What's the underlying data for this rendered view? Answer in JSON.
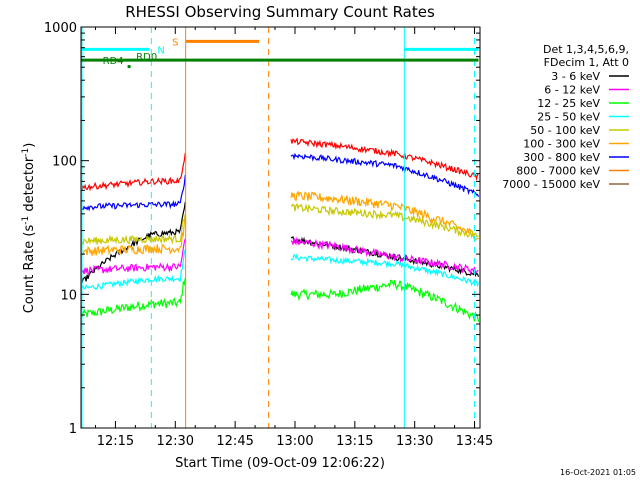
{
  "chart_data": {
    "type": "line",
    "title": "RHESSI Observing Summary Count Rates",
    "xlabel": "Start Time (09-Oct-09 12:06:22)",
    "ylabel_main": "Count Rate (s",
    "ylabel_sup": "-1",
    "ylabel_rest": " detector",
    "ylabel_close": ")",
    "y_scale": "log",
    "ylim": [
      1,
      1000
    ],
    "xlim_minutes": [
      726.37,
      826.37
    ],
    "x_ticks": [
      {
        "min": 735,
        "label": "12:15"
      },
      {
        "min": 750,
        "label": "12:30"
      },
      {
        "min": 765,
        "label": "12:45"
      },
      {
        "min": 780,
        "label": "13:00"
      },
      {
        "min": 795,
        "label": "13:15"
      },
      {
        "min": 810,
        "label": "13:30"
      },
      {
        "min": 825,
        "label": "13:45"
      }
    ],
    "y_ticks": [
      {
        "value": 1,
        "label": "1"
      },
      {
        "value": 10,
        "label": "10"
      },
      {
        "value": 100,
        "label": "100"
      },
      {
        "value": 1000,
        "label": "1000"
      }
    ],
    "legend_header": [
      "Det 1,3,4,5,6,9,",
      "FDecim 1, Att 0"
    ],
    "legend_placement": "right",
    "series": [
      {
        "name": "3 - 6 keV",
        "color": "#000000",
        "base": [
          12,
          28,
          26,
          23,
          21,
          19,
          16,
          14
        ]
      },
      {
        "name": "6 - 12 keV",
        "color": "#ff00ff",
        "base": [
          15,
          16,
          25,
          23,
          21,
          19,
          17,
          15
        ]
      },
      {
        "name": "12 - 25 keV",
        "color": "#00ff00",
        "base": [
          7,
          8.5,
          10,
          10,
          11,
          12,
          8,
          6.5
        ]
      },
      {
        "name": "25 - 50 keV",
        "color": "#00ffff",
        "base": [
          11,
          13,
          19,
          18,
          17.5,
          17,
          14,
          12
        ]
      },
      {
        "name": "50 - 100 keV",
        "color": "#c8c800",
        "base": [
          25,
          26,
          45,
          42,
          41,
          39,
          32,
          27
        ]
      },
      {
        "name": "100 - 300 keV",
        "color": "#ffa500",
        "base": [
          21,
          22,
          55,
          52,
          50,
          46,
          36,
          27
        ]
      },
      {
        "name": "300 - 800 keV",
        "color": "#0000ff",
        "base": [
          45,
          47,
          110,
          102,
          97,
          92,
          70,
          55
        ]
      },
      {
        "name": "800 - 7000 keV",
        "color": "#ff8000",
        "base": [
          21,
          22,
          55,
          52,
          50,
          46,
          36,
          27
        ]
      },
      {
        "name": "7000 - 15000 keV",
        "color": "#996633",
        "base": [
          21,
          22,
          55,
          52,
          50,
          46,
          36,
          27
        ]
      }
    ],
    "red_series_base": [
      63,
      70,
      140,
      130,
      120,
      113,
      90,
      75
    ],
    "segment_times": [
      726.4,
      744.0,
      744.0,
      752.5,
      779.0,
      790.0,
      805.0,
      826.0
    ],
    "vertical_lines": [
      {
        "min": 744.0,
        "color": "#00ffff",
        "style": "dashed"
      },
      {
        "min": 752.6,
        "color": "#ff8000",
        "style": "solid"
      },
      {
        "min": 773.4,
        "color": "#ff8000",
        "style": "dashed"
      },
      {
        "min": 807.4,
        "color": "#00ffff",
        "style": "solid"
      },
      {
        "min": 825.0,
        "color": "#00ffff",
        "style": "dashed"
      }
    ],
    "flag_bars": [
      {
        "label": "N",
        "color": "#00ffff",
        "y": 680,
        "x0": 726.4,
        "x1": 743.5,
        "label_at": 745.5
      },
      {
        "label": "N",
        "color": "#00ffff",
        "y": 680,
        "x0": 807.4,
        "x1": 826.0,
        "label_at": null
      },
      {
        "label": "S",
        "color": "#ff8000",
        "y": 780,
        "x0": 752.6,
        "x1": 771.0,
        "label_at": 749.2
      },
      {
        "label": "RD4",
        "color": "#008000",
        "y": 565,
        "x0": 726.4,
        "x1": 826.0,
        "label_at": 731.8
      },
      {
        "label": "RD0",
        "color": "#008000",
        "y": 605,
        "x0": 739.0,
        "x1": 739.0,
        "label_at": 740.2
      }
    ],
    "flag_marker_rd4": {
      "min": 738.3,
      "y": 510
    },
    "timestamp": "16-Oct-2021 01:05"
  }
}
